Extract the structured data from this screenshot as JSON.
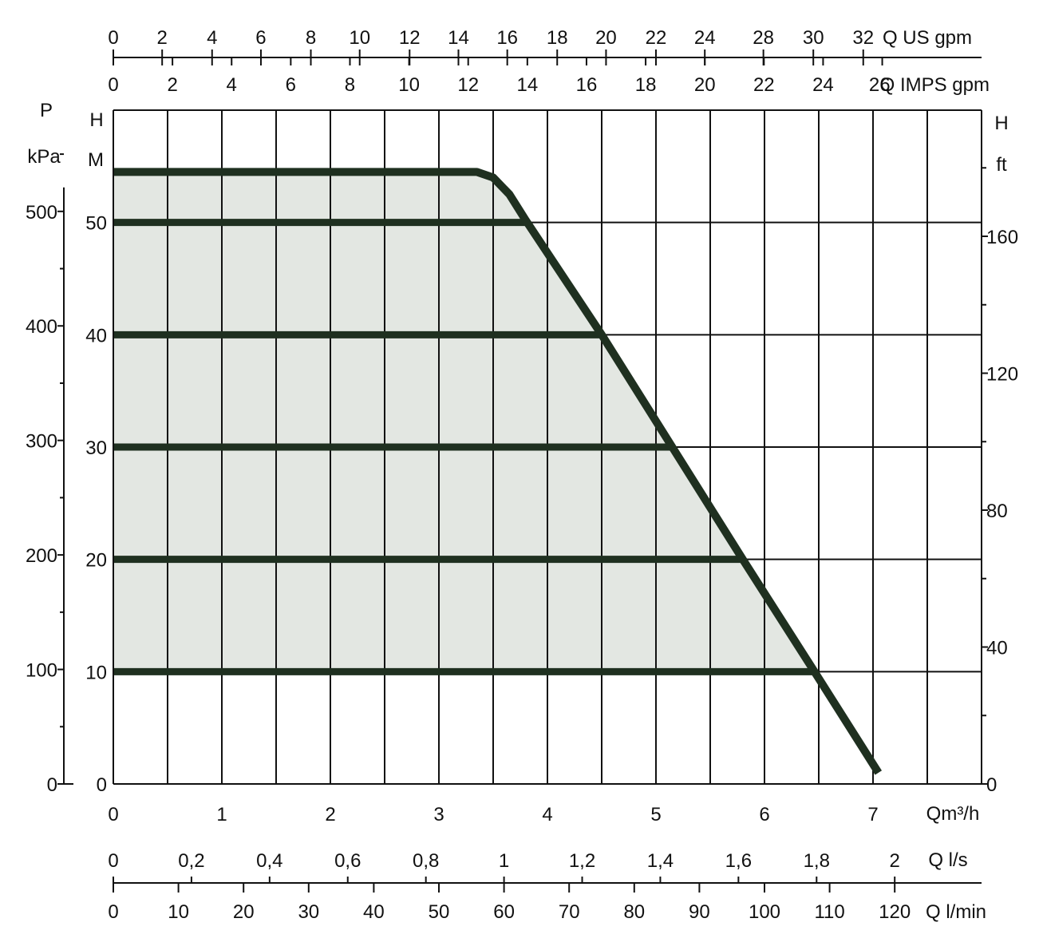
{
  "chart_data": {
    "type": "area",
    "x_axis_primary": {
      "label": "Qm³/h",
      "min": 0,
      "max": 8,
      "ticks": [
        0,
        1,
        2,
        3,
        4,
        5,
        6,
        7
      ],
      "tick_labels": [
        "0",
        "1",
        "2",
        "3",
        "4",
        "5",
        "6",
        "7"
      ]
    },
    "x_axis_us_gpm": {
      "label": "Q US gpm",
      "ticks": [
        0,
        2,
        4,
        6,
        8,
        10,
        12,
        14,
        16,
        18,
        20,
        22,
        24,
        28,
        30,
        32
      ],
      "tick_labels": [
        "0",
        "2",
        "4",
        "6",
        "8",
        "10",
        "12",
        "14",
        "16",
        "18",
        "20",
        "22",
        "24",
        "28",
        "30",
        "32"
      ],
      "tick_positions_m3h": [
        0,
        0.45,
        0.91,
        1.36,
        1.82,
        2.27,
        2.73,
        3.18,
        3.63,
        4.09,
        4.54,
        5.0,
        5.45,
        5.99,
        6.45,
        6.91
      ]
    },
    "x_axis_imp_gpm": {
      "label": "Q IMPS gpm",
      "ticks": [
        0,
        2,
        4,
        6,
        8,
        10,
        12,
        14,
        16,
        18,
        20,
        22,
        24,
        26
      ],
      "tick_labels": [
        "0",
        "2",
        "4",
        "6",
        "8",
        "10",
        "12",
        "14",
        "16",
        "18",
        "20",
        "22",
        "24",
        "26"
      ],
      "tick_positions_m3h": [
        0,
        0.545,
        1.09,
        1.635,
        2.18,
        2.725,
        3.27,
        3.815,
        4.36,
        4.905,
        5.45,
        5.995,
        6.54,
        7.085
      ]
    },
    "x_axis_ls": {
      "label": "Q l/s",
      "ticks": [
        0,
        0.2,
        0.4,
        0.6,
        0.8,
        1,
        1.2,
        1.4,
        1.6,
        1.8,
        2
      ],
      "tick_labels": [
        "0",
        "0,2",
        "0,4",
        "0,6",
        "0,8",
        "1",
        "1,2",
        "1,4",
        "1,6",
        "1,8",
        "2"
      ]
    },
    "x_axis_lmin": {
      "label": "Q l/min",
      "ticks": [
        0,
        10,
        20,
        30,
        40,
        50,
        60,
        70,
        80,
        90,
        100,
        110,
        120
      ],
      "tick_labels": [
        "0",
        "10",
        "20",
        "30",
        "40",
        "50",
        "60",
        "70",
        "80",
        "90",
        "100",
        "110",
        "120"
      ]
    },
    "y_axis_m": {
      "label_top": "H",
      "label_unit": "M",
      "min": 0,
      "max": 60,
      "ticks": [
        0,
        10,
        20,
        30,
        40,
        50
      ],
      "tick_labels": [
        "0",
        "10",
        "20",
        "30",
        "40",
        "50"
      ]
    },
    "y_axis_kpa": {
      "label_top": "P",
      "label_unit": "kPa",
      "ticks": [
        0,
        100,
        200,
        300,
        400,
        500
      ],
      "tick_labels": [
        "0",
        "100",
        "200",
        "300",
        "400",
        "500"
      ]
    },
    "y_axis_ft": {
      "label_top": "H",
      "label_unit": "ft",
      "ticks": [
        0,
        40,
        80,
        120,
        160
      ],
      "tick_labels": [
        "0",
        "40",
        "80",
        "120",
        "160"
      ]
    },
    "curve": {
      "x": [
        0,
        3.35,
        3.5,
        3.65,
        3.8,
        4.5,
        5.15,
        5.8,
        6.46,
        7.05
      ],
      "y": [
        54.5,
        54.5,
        54.0,
        52.5,
        50.2,
        40,
        30,
        20,
        10,
        1
      ]
    },
    "rated_lines": [
      {
        "head": 50,
        "q_end": 3.82
      },
      {
        "head": 40,
        "q_end": 4.48
      },
      {
        "head": 30,
        "q_end": 5.14
      },
      {
        "head": 20,
        "q_end": 5.8
      },
      {
        "head": 10,
        "q_end": 6.46
      }
    ],
    "colors": {
      "curve": "#1f3020",
      "fill": "#e3e7e2",
      "grid": "#111111"
    }
  }
}
